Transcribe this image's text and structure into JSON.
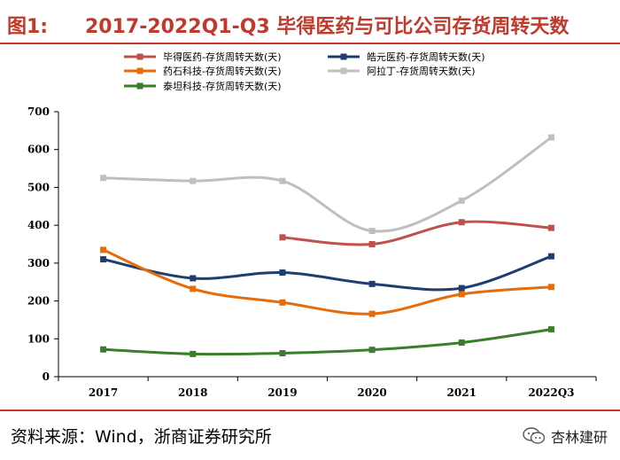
{
  "title": {
    "label": "图1:",
    "text": "2017-2022Q1-Q3 毕得医药与可比公司存货周转天数"
  },
  "source": "资料来源：Wind，浙商证券研究所",
  "watermark": {
    "text": "杏林建研",
    "icon": "wechat-icon"
  },
  "chart_data": {
    "type": "line",
    "categories": [
      "2017",
      "2018",
      "2019",
      "2020",
      "2021",
      "2022Q3"
    ],
    "ylim": [
      0,
      700
    ],
    "yticks": [
      "0",
      "100",
      "200",
      "300",
      "400",
      "500",
      "600",
      "700"
    ],
    "xlabel": "",
    "ylabel": "",
    "legend_position": "top",
    "series": [
      {
        "name": "毕得医药-存货周转天数(天)",
        "color": "#c0504d",
        "values": [
          null,
          null,
          368,
          350,
          408,
          393
        ]
      },
      {
        "name": "皓元医药-存货周转天数(天)",
        "color": "#1f3d6e",
        "values": [
          310,
          260,
          275,
          245,
          234,
          318
        ]
      },
      {
        "name": "药石科技-存货周转天数(天)",
        "color": "#e46c0a",
        "values": [
          335,
          232,
          196,
          166,
          218,
          237
        ]
      },
      {
        "name": "阿拉丁-存货周转天数(天)",
        "color": "#bfbfbf",
        "values": [
          525,
          517,
          517,
          385,
          465,
          632
        ]
      },
      {
        "name": "泰坦科技-存货周转天数(天)",
        "color": "#3a7d2c",
        "values": [
          72,
          60,
          62,
          71,
          90,
          125
        ]
      }
    ]
  }
}
